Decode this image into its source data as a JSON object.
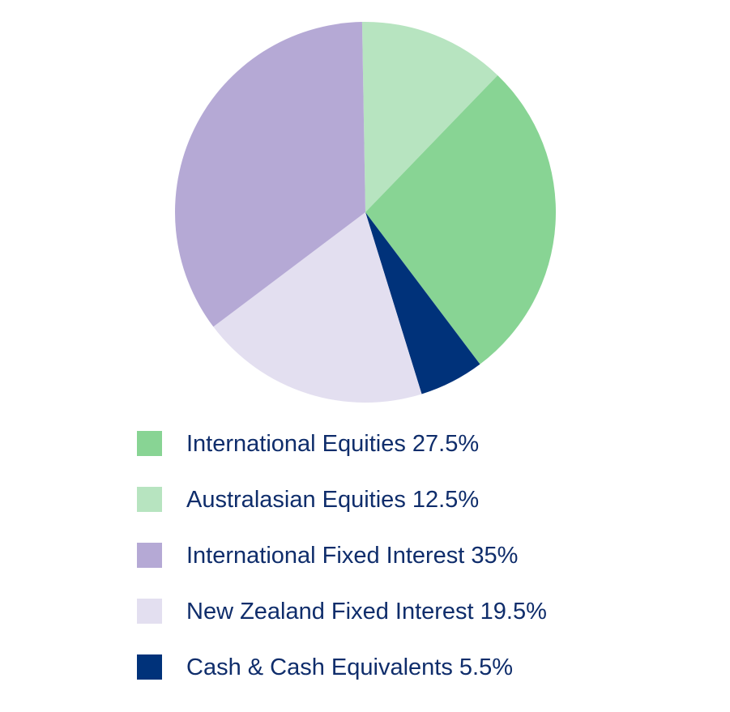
{
  "chart_data": {
    "type": "pie",
    "title": "",
    "legend_position": "bottom",
    "series": [
      {
        "name": "International Equities",
        "value": 27.5,
        "color": "#88d494",
        "label": "International Equities 27.5%"
      },
      {
        "name": "Australasian Equities",
        "value": 12.5,
        "color": "#b7e4c0",
        "label": "Australasian Equities 12.5%"
      },
      {
        "name": "International Fixed Interest",
        "value": 35,
        "color": "#b5a9d5",
        "label": "International Fixed Interest 35%"
      },
      {
        "name": "New Zealand Fixed Interest",
        "value": 19.5,
        "color": "#e3dff0",
        "label": "New Zealand Fixed Interest 19.5%"
      },
      {
        "name": "Cash & Cash Equivalents",
        "value": 5.5,
        "color": "#00327a",
        "label": "Cash & Cash Equivalents 5.5%"
      }
    ]
  }
}
